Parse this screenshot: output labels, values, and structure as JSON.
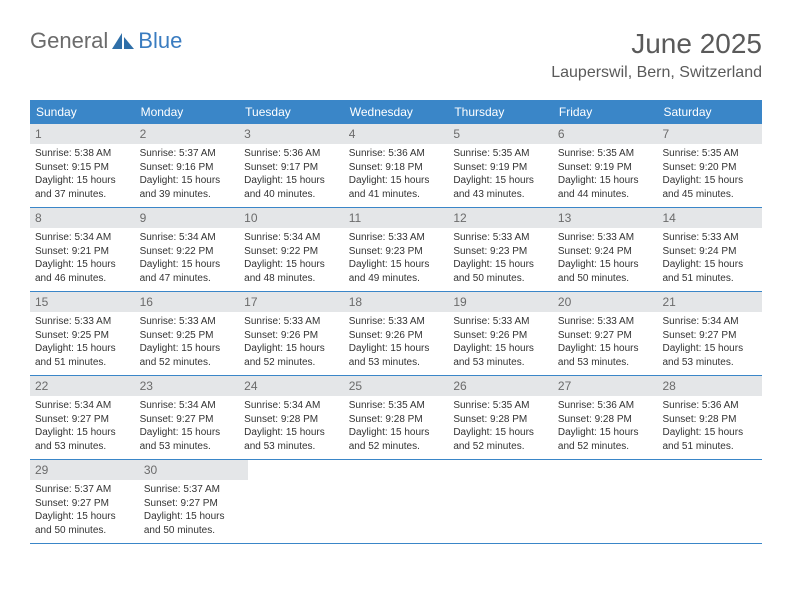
{
  "logo": {
    "text_general": "General",
    "text_blue": "Blue",
    "icon_color": "#2f6fa8"
  },
  "title": "June 2025",
  "location": "Lauperswil, Bern, Switzerland",
  "colors": {
    "header_bg": "#3a86c8",
    "daynum_bg": "#e4e6e8",
    "text": "#333333",
    "divider": "#3a86c8"
  },
  "typography": {
    "title_fontsize": 28,
    "location_fontsize": 16,
    "weekday_fontsize": 12,
    "daynum_fontsize": 12,
    "body_fontsize": 10
  },
  "weekdays": [
    "Sunday",
    "Monday",
    "Tuesday",
    "Wednesday",
    "Thursday",
    "Friday",
    "Saturday"
  ],
  "days": [
    {
      "num": "1",
      "sunrise": "Sunrise: 5:38 AM",
      "sunset": "Sunset: 9:15 PM",
      "daylight": "Daylight: 15 hours and 37 minutes."
    },
    {
      "num": "2",
      "sunrise": "Sunrise: 5:37 AM",
      "sunset": "Sunset: 9:16 PM",
      "daylight": "Daylight: 15 hours and 39 minutes."
    },
    {
      "num": "3",
      "sunrise": "Sunrise: 5:36 AM",
      "sunset": "Sunset: 9:17 PM",
      "daylight": "Daylight: 15 hours and 40 minutes."
    },
    {
      "num": "4",
      "sunrise": "Sunrise: 5:36 AM",
      "sunset": "Sunset: 9:18 PM",
      "daylight": "Daylight: 15 hours and 41 minutes."
    },
    {
      "num": "5",
      "sunrise": "Sunrise: 5:35 AM",
      "sunset": "Sunset: 9:19 PM",
      "daylight": "Daylight: 15 hours and 43 minutes."
    },
    {
      "num": "6",
      "sunrise": "Sunrise: 5:35 AM",
      "sunset": "Sunset: 9:19 PM",
      "daylight": "Daylight: 15 hours and 44 minutes."
    },
    {
      "num": "7",
      "sunrise": "Sunrise: 5:35 AM",
      "sunset": "Sunset: 9:20 PM",
      "daylight": "Daylight: 15 hours and 45 minutes."
    },
    {
      "num": "8",
      "sunrise": "Sunrise: 5:34 AM",
      "sunset": "Sunset: 9:21 PM",
      "daylight": "Daylight: 15 hours and 46 minutes."
    },
    {
      "num": "9",
      "sunrise": "Sunrise: 5:34 AM",
      "sunset": "Sunset: 9:22 PM",
      "daylight": "Daylight: 15 hours and 47 minutes."
    },
    {
      "num": "10",
      "sunrise": "Sunrise: 5:34 AM",
      "sunset": "Sunset: 9:22 PM",
      "daylight": "Daylight: 15 hours and 48 minutes."
    },
    {
      "num": "11",
      "sunrise": "Sunrise: 5:33 AM",
      "sunset": "Sunset: 9:23 PM",
      "daylight": "Daylight: 15 hours and 49 minutes."
    },
    {
      "num": "12",
      "sunrise": "Sunrise: 5:33 AM",
      "sunset": "Sunset: 9:23 PM",
      "daylight": "Daylight: 15 hours and 50 minutes."
    },
    {
      "num": "13",
      "sunrise": "Sunrise: 5:33 AM",
      "sunset": "Sunset: 9:24 PM",
      "daylight": "Daylight: 15 hours and 50 minutes."
    },
    {
      "num": "14",
      "sunrise": "Sunrise: 5:33 AM",
      "sunset": "Sunset: 9:24 PM",
      "daylight": "Daylight: 15 hours and 51 minutes."
    },
    {
      "num": "15",
      "sunrise": "Sunrise: 5:33 AM",
      "sunset": "Sunset: 9:25 PM",
      "daylight": "Daylight: 15 hours and 51 minutes."
    },
    {
      "num": "16",
      "sunrise": "Sunrise: 5:33 AM",
      "sunset": "Sunset: 9:25 PM",
      "daylight": "Daylight: 15 hours and 52 minutes."
    },
    {
      "num": "17",
      "sunrise": "Sunrise: 5:33 AM",
      "sunset": "Sunset: 9:26 PM",
      "daylight": "Daylight: 15 hours and 52 minutes."
    },
    {
      "num": "18",
      "sunrise": "Sunrise: 5:33 AM",
      "sunset": "Sunset: 9:26 PM",
      "daylight": "Daylight: 15 hours and 53 minutes."
    },
    {
      "num": "19",
      "sunrise": "Sunrise: 5:33 AM",
      "sunset": "Sunset: 9:26 PM",
      "daylight": "Daylight: 15 hours and 53 minutes."
    },
    {
      "num": "20",
      "sunrise": "Sunrise: 5:33 AM",
      "sunset": "Sunset: 9:27 PM",
      "daylight": "Daylight: 15 hours and 53 minutes."
    },
    {
      "num": "21",
      "sunrise": "Sunrise: 5:34 AM",
      "sunset": "Sunset: 9:27 PM",
      "daylight": "Daylight: 15 hours and 53 minutes."
    },
    {
      "num": "22",
      "sunrise": "Sunrise: 5:34 AM",
      "sunset": "Sunset: 9:27 PM",
      "daylight": "Daylight: 15 hours and 53 minutes."
    },
    {
      "num": "23",
      "sunrise": "Sunrise: 5:34 AM",
      "sunset": "Sunset: 9:27 PM",
      "daylight": "Daylight: 15 hours and 53 minutes."
    },
    {
      "num": "24",
      "sunrise": "Sunrise: 5:34 AM",
      "sunset": "Sunset: 9:28 PM",
      "daylight": "Daylight: 15 hours and 53 minutes."
    },
    {
      "num": "25",
      "sunrise": "Sunrise: 5:35 AM",
      "sunset": "Sunset: 9:28 PM",
      "daylight": "Daylight: 15 hours and 52 minutes."
    },
    {
      "num": "26",
      "sunrise": "Sunrise: 5:35 AM",
      "sunset": "Sunset: 9:28 PM",
      "daylight": "Daylight: 15 hours and 52 minutes."
    },
    {
      "num": "27",
      "sunrise": "Sunrise: 5:36 AM",
      "sunset": "Sunset: 9:28 PM",
      "daylight": "Daylight: 15 hours and 52 minutes."
    },
    {
      "num": "28",
      "sunrise": "Sunrise: 5:36 AM",
      "sunset": "Sunset: 9:28 PM",
      "daylight": "Daylight: 15 hours and 51 minutes."
    },
    {
      "num": "29",
      "sunrise": "Sunrise: 5:37 AM",
      "sunset": "Sunset: 9:27 PM",
      "daylight": "Daylight: 15 hours and 50 minutes."
    },
    {
      "num": "30",
      "sunrise": "Sunrise: 5:37 AM",
      "sunset": "Sunset: 9:27 PM",
      "daylight": "Daylight: 15 hours and 50 minutes."
    }
  ],
  "layout": {
    "columns": 7,
    "start_weekday_index": 0,
    "total_cells": 35
  }
}
